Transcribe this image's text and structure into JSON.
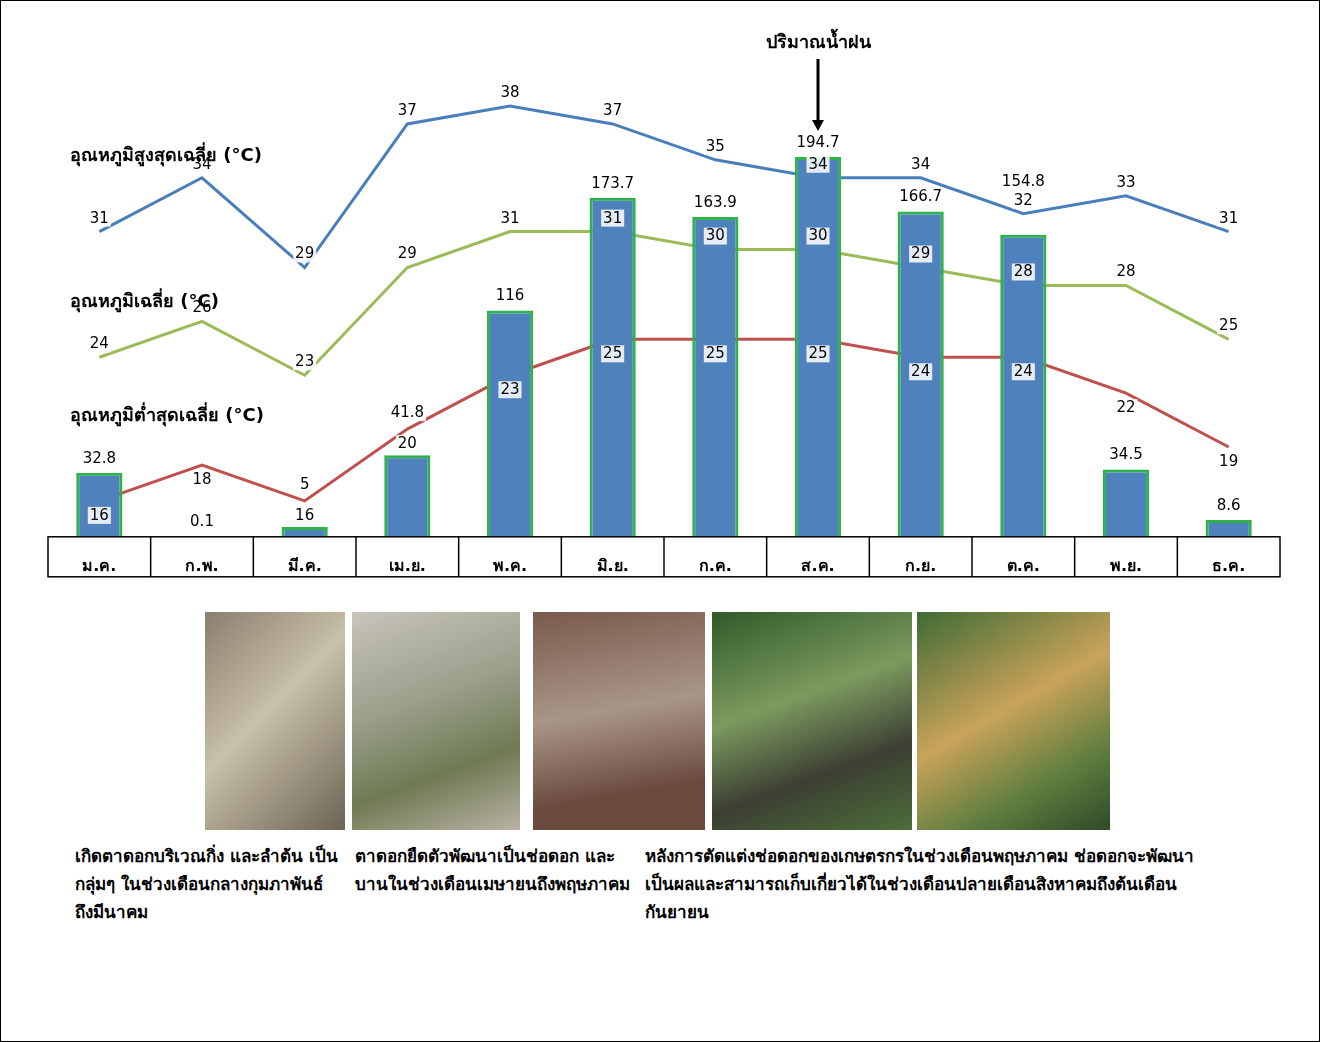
{
  "chart_data": {
    "type": "bar",
    "categories": [
      "ม.ค.",
      "ก.พ.",
      "มี.ค.",
      "เม.ย.",
      "พ.ค.",
      "มิ.ย.",
      "ก.ค.",
      "ส.ค.",
      "ก.ย.",
      "ต.ค.",
      "พ.ย.",
      "ธ.ค."
    ],
    "series": [
      {
        "name": "ปริมาณน้ำฝน",
        "type": "bar",
        "axis": "y",
        "color": "#4f81bd",
        "values": [
          32.8,
          0.1,
          5,
          41.8,
          116,
          173.7,
          163.9,
          194.7,
          166.7,
          154.8,
          34.5,
          8.6
        ]
      },
      {
        "name": "อุณหภูมิสูงสุดเฉลี่ย (°C)",
        "type": "line",
        "axis": "y2",
        "color": "#4a7ebb",
        "values": [
          31,
          34,
          29,
          37,
          38,
          37,
          35,
          34,
          34,
          32,
          33,
          31
        ]
      },
      {
        "name": "อุณหภูมิเฉลี่ย (°C)",
        "type": "line",
        "axis": "y2",
        "color": "#9bbb59",
        "values": [
          24,
          26,
          23,
          29,
          31,
          31,
          30,
          30,
          29,
          28,
          28,
          25
        ]
      },
      {
        "name": "อุณหภูมิต่ำสุดเฉลี่ย (°C)",
        "type": "line",
        "axis": "y2",
        "color": "#c0504d",
        "values": [
          16,
          18,
          16,
          20,
          23,
          25,
          25,
          25,
          24,
          24,
          22,
          19
        ]
      }
    ],
    "ylim": [
      0,
      230
    ],
    "y2lim": [
      14,
      39
    ],
    "grid": false,
    "data_labels": true,
    "tick_labels": "x"
  },
  "captions": [
    "เกิดตาดอกบริเวณกิ่ง และลำต้น เป็นกลุ่มๆ ในช่วงเดือนกลางกุมภาพันธ์ถึงมีนาคม",
    "ตาดอกยืดตัวพัฒนาเป็นช่อดอก และบานในช่วงเดือนเมษายนถึงพฤษภาคม",
    "หลังการตัดแต่งช่อดอกของเกษตรกรในช่วงเดือนพฤษภาคม ช่อดอกจะพัฒนาเป็นผลและสามารถเก็บเกี่ยวได้ในช่วงเดือนปลายเดือนสิงหาคมถึงต้นเดือนกันยายน"
  ]
}
